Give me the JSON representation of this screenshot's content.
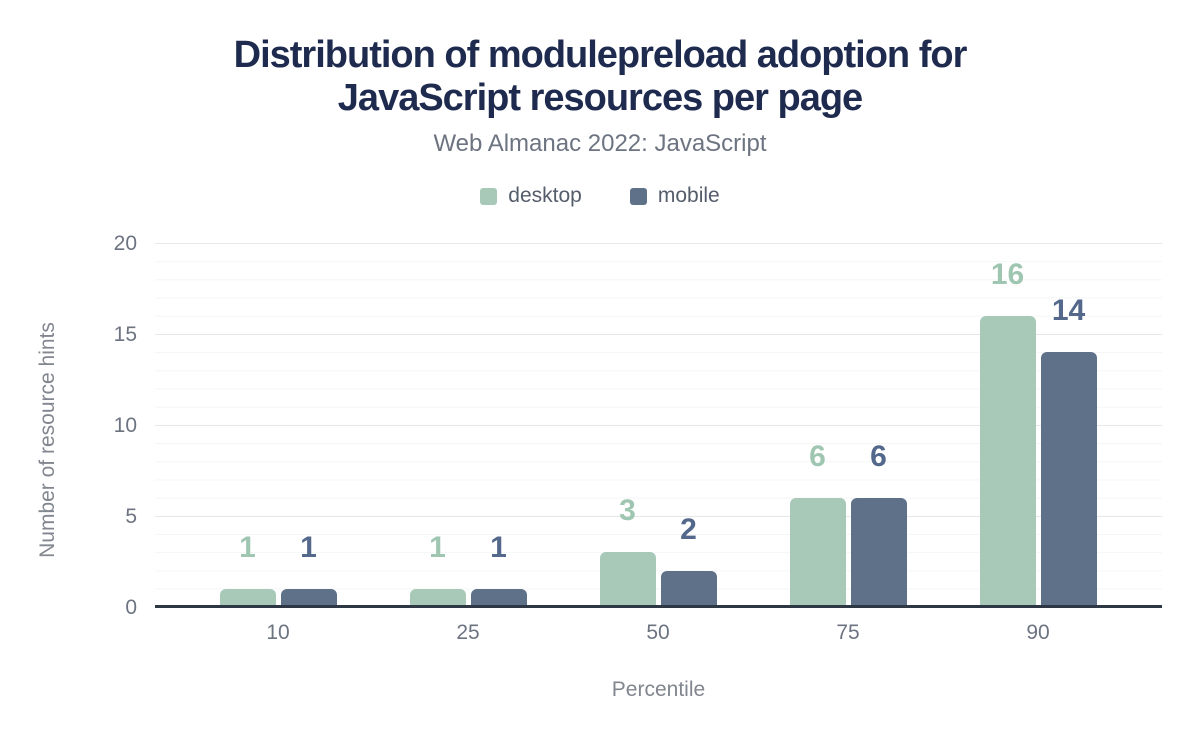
{
  "title_lines": [
    "Distribution of modulepreload adoption for",
    "JavaScript resources per page"
  ],
  "subtitle": "Web Almanac 2022: JavaScript",
  "legend": [
    {
      "label": "desktop",
      "color": "#a8c9b8"
    },
    {
      "label": "mobile",
      "color": "#5f7189"
    }
  ],
  "chart_data": {
    "type": "bar",
    "title": "Distribution of modulepreload adoption for JavaScript resources per page",
    "subtitle": "Web Almanac 2022: JavaScript",
    "categories": [
      "10",
      "25",
      "50",
      "75",
      "90"
    ],
    "series": [
      {
        "name": "desktop",
        "color": "#a8c9b8",
        "label_color": "#9fc6b1",
        "values": [
          1,
          1,
          3,
          6,
          16
        ]
      },
      {
        "name": "mobile",
        "color": "#5f7189",
        "label_color": "#54688c",
        "values": [
          1,
          1,
          2,
          6,
          14
        ]
      }
    ],
    "xlabel": "Percentile",
    "ylabel": "Number of resource hints",
    "ylim": [
      0,
      20
    ],
    "yticks": [
      0,
      5,
      10,
      15,
      20
    ],
    "ytick_labels_top_down": [
      "20",
      "15",
      "10",
      "5",
      "0"
    ],
    "grid": "horizontal; minor lines every 1 unit, major lines every 5 units",
    "legend_position": "top center",
    "bar_value_labels": "shown above bars, colored per series"
  },
  "colors": {
    "title": "#1e2b4e",
    "axis_line": "#2e3744",
    "tick_text": "#6d7481",
    "axis_title_text": "#81868f",
    "background": "#ffffff"
  }
}
